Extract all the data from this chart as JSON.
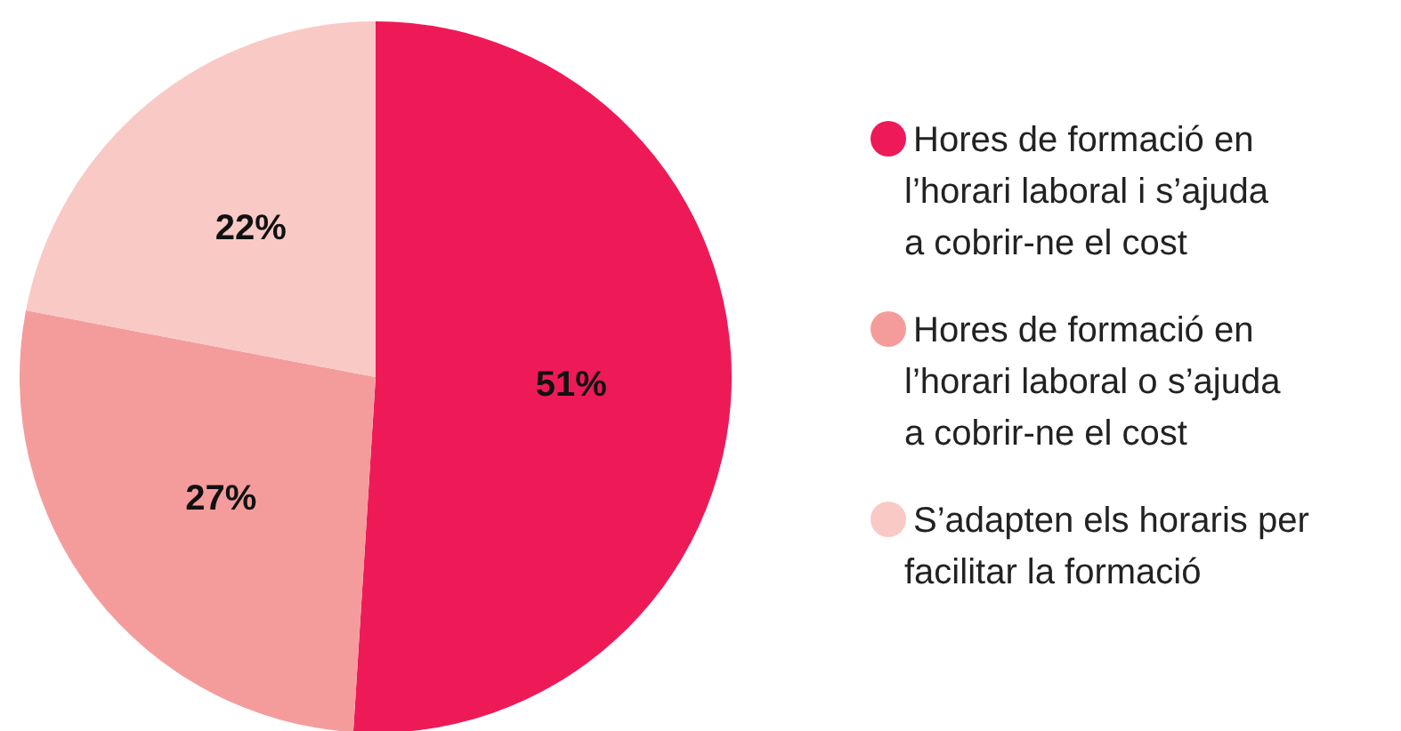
{
  "chart_data": {
    "type": "pie",
    "categories": [
      "Hores de formació en l’horari laboral i s’ajuda a cobrir-ne el cost",
      "Hores de formació en l’horari laboral o s’ajuda a cobrir-ne el cost",
      "S’adapten els horaris per facilitar la formació"
    ],
    "values": [
      51,
      27,
      22
    ],
    "colors": [
      "#ee1a58",
      "#f49c9c",
      "#f9c9c6"
    ],
    "value_labels": [
      "51%",
      "27%",
      "22%"
    ],
    "legend": "right"
  }
}
